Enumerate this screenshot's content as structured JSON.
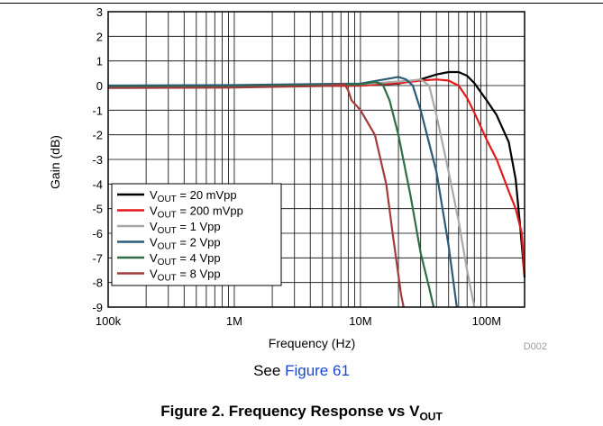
{
  "chart_data": {
    "type": "line",
    "xlabel": "Frequency (Hz)",
    "ylabel": "Gain (dB)",
    "x_scale": "log",
    "xlim": [
      100000,
      200000000
    ],
    "ylim": [
      -9,
      3
    ],
    "x_ticks": [
      {
        "value": 100000,
        "label": "100k"
      },
      {
        "value": 1000000,
        "label": "1M"
      },
      {
        "value": 10000000,
        "label": "10M"
      },
      {
        "value": 100000000,
        "label": "100M"
      }
    ],
    "y_ticks": [
      3,
      2,
      1,
      0,
      -1,
      -2,
      -3,
      -4,
      -5,
      -6,
      -7,
      -8,
      -9
    ],
    "y_tick_labels": [
      "3",
      "2",
      "1",
      "0",
      "-1",
      "-2",
      "-3",
      "-4",
      "-5",
      "-6",
      "-7",
      "-8",
      "-9"
    ],
    "grid": true,
    "legend_position": "bottom-left",
    "figure_id": "D002",
    "series": [
      {
        "label_main": "V",
        "label_sub": "OUT",
        "label_rest": " = 20 mVpp",
        "color": "#000000",
        "points": [
          [
            100000,
            -0.05
          ],
          [
            1000000,
            -0.04
          ],
          [
            10000000,
            0.0
          ],
          [
            20000000,
            0.08
          ],
          [
            30000000,
            0.25
          ],
          [
            40000000,
            0.45
          ],
          [
            50000000,
            0.55
          ],
          [
            60000000,
            0.55
          ],
          [
            70000000,
            0.4
          ],
          [
            80000000,
            0.1
          ],
          [
            100000000,
            -0.6
          ],
          [
            120000000,
            -1.2
          ],
          [
            150000000,
            -2.3
          ],
          [
            170000000,
            -3.8
          ],
          [
            185000000,
            -5.8
          ],
          [
            200000000,
            -7.8
          ]
        ]
      },
      {
        "label_main": "V",
        "label_sub": "OUT",
        "label_rest": " = 200 mVpp",
        "color": "#e41a1a",
        "points": [
          [
            100000,
            -0.05
          ],
          [
            1000000,
            -0.04
          ],
          [
            10000000,
            0.0
          ],
          [
            20000000,
            0.1
          ],
          [
            30000000,
            0.2
          ],
          [
            40000000,
            0.25
          ],
          [
            50000000,
            0.2
          ],
          [
            60000000,
            0.0
          ],
          [
            70000000,
            -0.5
          ],
          [
            80000000,
            -1.1
          ],
          [
            100000000,
            -2.2
          ],
          [
            120000000,
            -3.0
          ],
          [
            150000000,
            -4.3
          ],
          [
            170000000,
            -5.0
          ],
          [
            190000000,
            -6.0
          ],
          [
            200000000,
            -7.7
          ]
        ]
      },
      {
        "label_main": "V",
        "label_sub": "OUT",
        "label_rest": " = 1 Vpp",
        "color": "#a8a8a8",
        "points": [
          [
            100000,
            -0.05
          ],
          [
            1000000,
            -0.04
          ],
          [
            10000000,
            0.05
          ],
          [
            25000000,
            0.2
          ],
          [
            30000000,
            0.25
          ],
          [
            35000000,
            0.0
          ],
          [
            40000000,
            -1.2
          ],
          [
            50000000,
            -3.5
          ],
          [
            60000000,
            -5.5
          ],
          [
            70000000,
            -7.5
          ],
          [
            80000000,
            -9.0
          ]
        ]
      },
      {
        "label_main": "V",
        "label_sub": "OUT",
        "label_rest": " = 2 Vpp",
        "color": "#2c5b78",
        "points": [
          [
            100000,
            0.0
          ],
          [
            1000000,
            0.02
          ],
          [
            10000000,
            0.08
          ],
          [
            20000000,
            0.35
          ],
          [
            23000000,
            0.25
          ],
          [
            26000000,
            0.0
          ],
          [
            30000000,
            -1.0
          ],
          [
            40000000,
            -3.5
          ],
          [
            50000000,
            -6.5
          ],
          [
            58000000,
            -9.0
          ]
        ]
      },
      {
        "label_main": "V",
        "label_sub": "OUT",
        "label_rest": " = 4 Vpp",
        "color": "#2e6e46",
        "points": [
          [
            100000,
            -0.05
          ],
          [
            1000000,
            -0.04
          ],
          [
            10000000,
            0.05
          ],
          [
            13000000,
            0.15
          ],
          [
            15000000,
            0.05
          ],
          [
            17000000,
            -0.6
          ],
          [
            20000000,
            -2.0
          ],
          [
            25000000,
            -4.5
          ],
          [
            30000000,
            -6.8
          ],
          [
            35000000,
            -8.2
          ],
          [
            38000000,
            -9.0
          ]
        ]
      },
      {
        "label_main": "V",
        "label_sub": "OUT",
        "label_rest": " = 8 Vpp",
        "color": "#a23c3c",
        "points": [
          [
            100000,
            -0.1
          ],
          [
            1000000,
            -0.08
          ],
          [
            5000000,
            -0.02
          ],
          [
            7500000,
            0.05
          ],
          [
            8000000,
            -0.2
          ],
          [
            8500000,
            -0.6
          ],
          [
            10000000,
            -1.0
          ],
          [
            13000000,
            -2.0
          ],
          [
            16000000,
            -4.0
          ],
          [
            18000000,
            -6.0
          ],
          [
            21000000,
            -8.5
          ],
          [
            22000000,
            -9.0
          ]
        ]
      }
    ]
  },
  "note": {
    "prefix": "See ",
    "link": "Figure 61"
  },
  "caption": {
    "main": "Figure 2. Frequency Response vs V",
    "sub": "OUT"
  }
}
